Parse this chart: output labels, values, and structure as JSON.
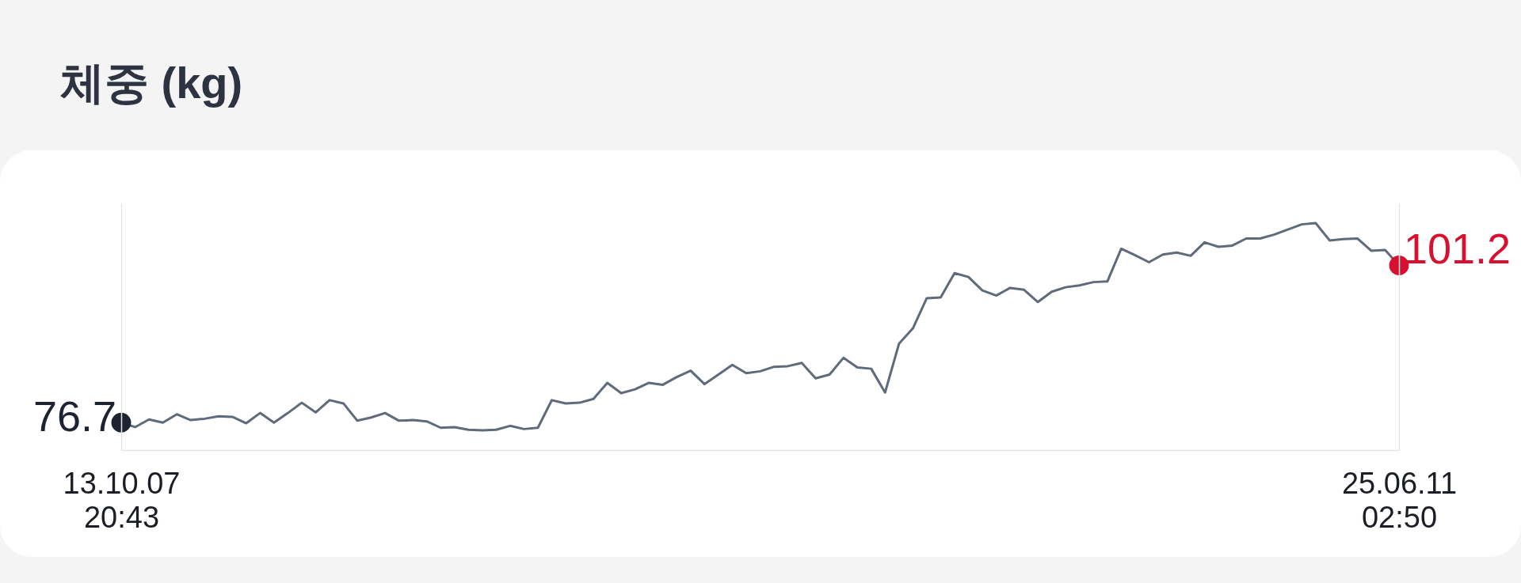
{
  "chart_data": {
    "type": "line",
    "title": "체중 (kg)",
    "categories": [
      "13.10.07\n20:43",
      null,
      null,
      null,
      null,
      null,
      null,
      null,
      null,
      null,
      null,
      null,
      null,
      null,
      null,
      null,
      null,
      null,
      null,
      null,
      null,
      null,
      null,
      null,
      null,
      null,
      null,
      null,
      null,
      null,
      null,
      null,
      null,
      null,
      null,
      null,
      null,
      null,
      null,
      null,
      null,
      null,
      null,
      null,
      null,
      null,
      null,
      null,
      null,
      null,
      null,
      null,
      null,
      null,
      null,
      null,
      null,
      null,
      null,
      null,
      null,
      null,
      null,
      null,
      null,
      null,
      null,
      null,
      null,
      null,
      null,
      null,
      null,
      null,
      null,
      null,
      null,
      null,
      null,
      null,
      null,
      null,
      null,
      null,
      null,
      null,
      null,
      null,
      null,
      null,
      null,
      null,
      "25.06.11\n02:50"
    ],
    "series": [
      {
        "color": "#5f6a7a",
        "values": [
          76.7,
          76.0,
          77.2,
          76.7,
          78.0,
          77.1,
          77.3,
          77.7,
          77.6,
          76.6,
          78.2,
          76.7,
          78.2,
          79.8,
          78.3,
          80.2,
          79.7,
          77.0,
          77.5,
          78.2,
          77.0,
          77.1,
          76.9,
          75.9,
          76.0,
          75.6,
          75.5,
          75.6,
          76.2,
          75.7,
          75.9,
          80.2,
          79.7,
          79.8,
          80.4,
          82.9,
          81.3,
          81.9,
          82.9,
          82.6,
          83.8,
          84.8,
          82.7,
          84.2,
          85.7,
          84.4,
          84.7,
          85.4,
          85.5,
          86.0,
          83.6,
          84.2,
          86.8,
          85.3,
          85.1,
          81.4,
          89.0,
          91.4,
          96.1,
          96.2,
          100.0,
          99.4,
          97.3,
          96.5,
          97.7,
          97.4,
          95.5,
          97.1,
          97.8,
          98.1,
          98.6,
          98.7,
          103.8,
          102.8,
          101.7,
          102.9,
          103.2,
          102.7,
          104.8,
          104.1,
          104.3,
          105.4,
          105.4,
          106.0,
          106.8,
          107.6,
          107.8,
          105.1,
          105.3,
          105.4,
          103.5,
          103.6,
          101.2
        ]
      },
      {
        "type": "scatter",
        "color": "#1e2331",
        "values": [
          76.7,
          null,
          null,
          null,
          null,
          null,
          null,
          null,
          null,
          null,
          null,
          null,
          null,
          null,
          null,
          null,
          null,
          null,
          null,
          null,
          null,
          null,
          null,
          null,
          null,
          null,
          null,
          null,
          null,
          null,
          null,
          null,
          null,
          null,
          null,
          null,
          null,
          null,
          null,
          null,
          null,
          null,
          null,
          null,
          null,
          null,
          null,
          null,
          null,
          null,
          null,
          null,
          null,
          null,
          null,
          null,
          null,
          null,
          null,
          null,
          null,
          null,
          null,
          null,
          null,
          null,
          null,
          null,
          null,
          null,
          null,
          null,
          null,
          null,
          null,
          null,
          null,
          null,
          null,
          null,
          null,
          null,
          null,
          null,
          null,
          null,
          null,
          null,
          null,
          null,
          null,
          null,
          null
        ],
        "value_labels": [
          "76.7",
          null,
          null,
          null,
          null,
          null,
          null,
          null,
          null,
          null,
          null,
          null,
          null,
          null,
          null,
          null,
          null,
          null,
          null,
          null,
          null,
          null,
          null,
          null,
          null,
          null,
          null,
          null,
          null,
          null,
          null,
          null,
          null,
          null,
          null,
          null,
          null,
          null,
          null,
          null,
          null,
          null,
          null,
          null,
          null,
          null,
          null,
          null,
          null,
          null,
          null,
          null,
          null,
          null,
          null,
          null,
          null,
          null,
          null,
          null,
          null,
          null,
          null,
          null,
          null,
          null,
          null,
          null,
          null,
          null,
          null,
          null,
          null,
          null,
          null,
          null,
          null,
          null,
          null,
          null,
          null,
          null,
          null,
          null,
          null,
          null,
          null,
          null,
          null,
          null,
          null,
          null,
          null
        ]
      },
      {
        "type": "scatter",
        "color": "#d6102e",
        "values": [
          null,
          null,
          null,
          null,
          null,
          null,
          null,
          null,
          null,
          null,
          null,
          null,
          null,
          null,
          null,
          null,
          null,
          null,
          null,
          null,
          null,
          null,
          null,
          null,
          null,
          null,
          null,
          null,
          null,
          null,
          null,
          null,
          null,
          null,
          null,
          null,
          null,
          null,
          null,
          null,
          null,
          null,
          null,
          null,
          null,
          null,
          null,
          null,
          null,
          null,
          null,
          null,
          null,
          null,
          null,
          null,
          null,
          null,
          null,
          null,
          null,
          null,
          null,
          null,
          null,
          null,
          null,
          null,
          null,
          null,
          null,
          null,
          null,
          null,
          null,
          null,
          null,
          null,
          null,
          null,
          null,
          null,
          null,
          null,
          null,
          null,
          null,
          null,
          null,
          null,
          null,
          null,
          101.2
        ],
        "value_labels": [
          null,
          null,
          null,
          null,
          null,
          null,
          null,
          null,
          null,
          null,
          null,
          null,
          null,
          null,
          null,
          null,
          null,
          null,
          null,
          null,
          null,
          null,
          null,
          null,
          null,
          null,
          null,
          null,
          null,
          null,
          null,
          null,
          null,
          null,
          null,
          null,
          null,
          null,
          null,
          null,
          null,
          null,
          null,
          null,
          null,
          null,
          null,
          null,
          null,
          null,
          null,
          null,
          null,
          null,
          null,
          null,
          null,
          null,
          null,
          null,
          null,
          null,
          null,
          null,
          null,
          null,
          null,
          null,
          null,
          null,
          null,
          null,
          null,
          null,
          null,
          null,
          null,
          null,
          null,
          null,
          null,
          null,
          null,
          null,
          null,
          null,
          null,
          null,
          null,
          null,
          null,
          null,
          "101.2"
        ]
      }
    ],
    "tick_labels": "x",
    "line_style": "solid"
  }
}
